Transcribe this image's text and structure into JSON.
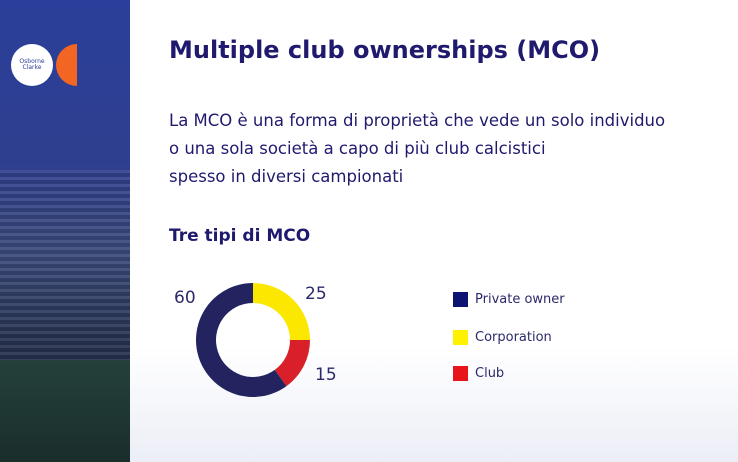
{
  "title": "Multiple club ownerships (MCO)",
  "description": [
    "La MCO è una forma di proprietà che vede un solo individuo",
    "o una sola società a capo di più club calcistici",
    "spesso in diversi campionati"
  ],
  "logo_text": "Osborne Clarke",
  "chart_data": {
    "type": "pie",
    "donut": true,
    "title": "Tre tipi di MCO",
    "categories": [
      "Corporation",
      "Club",
      "Private owner"
    ],
    "values": [
      25,
      15,
      60
    ],
    "colors": [
      "#fbe700",
      "#d9202a",
      "#23235f"
    ],
    "legend": [
      {
        "label": "Private owner",
        "color": "#0c1472"
      },
      {
        "label": "Corporation",
        "color": "#fff200"
      },
      {
        "label": "Club",
        "color": "#e8141c"
      }
    ],
    "legend_placement": "right"
  }
}
